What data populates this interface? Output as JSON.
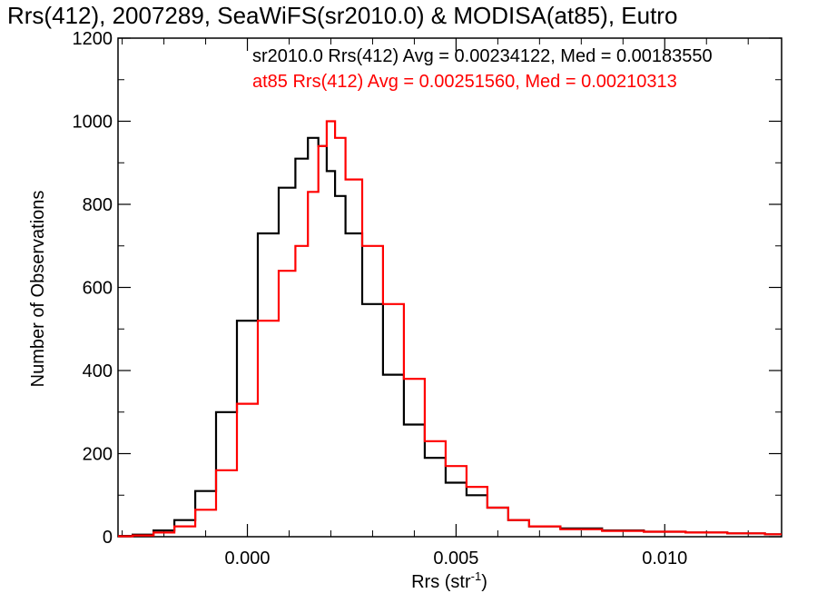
{
  "chart_data": {
    "type": "line",
    "title": "Rrs(412), 2007289, SeaWiFS(sr2010.0) & MODISA(at85), Eutro",
    "xlabel": "Rrs (str",
    "xlabel_sup": "-1",
    "xlabel_end": ")",
    "ylabel": "Number of Observations",
    "xlim": [
      -0.0031,
      0.0128
    ],
    "ylim": [
      0,
      1200
    ],
    "xticks": [
      0.0,
      0.005,
      0.01
    ],
    "xtick_labels": [
      "0.000",
      "0.005",
      "0.010"
    ],
    "yticks": [
      0,
      200,
      400,
      600,
      800,
      1000,
      1200
    ],
    "ytick_labels": [
      "0",
      "200",
      "400",
      "600",
      "800",
      "1000",
      "1200"
    ],
    "grid": false,
    "legend_position": "top-right",
    "x": [
      -0.003,
      -0.0025,
      -0.002,
      -0.0015,
      -0.001,
      -0.0005,
      0.0,
      0.0005,
      0.001,
      0.0013,
      0.0016,
      0.0018,
      0.002,
      0.0022,
      0.0025,
      0.003,
      0.0035,
      0.004,
      0.0045,
      0.005,
      0.0055,
      0.006,
      0.0065,
      0.007,
      0.008,
      0.009,
      0.01,
      0.011,
      0.012,
      0.0128
    ],
    "series": [
      {
        "name": "sr2010.0",
        "color": "#000000",
        "legend_text": "sr2010.0 Rrs(412) Avg = 0.00234122, Med = 0.00183550",
        "values": [
          2,
          5,
          15,
          40,
          110,
          300,
          520,
          730,
          840,
          910,
          960,
          940,
          880,
          820,
          730,
          560,
          390,
          270,
          190,
          130,
          100,
          70,
          40,
          25,
          20,
          15,
          12,
          10,
          8,
          6
        ]
      },
      {
        "name": "at85",
        "color": "#ff0000",
        "legend_text": "at85 Rrs(412) Avg = 0.00251560, Med = 0.00210313",
        "values": [
          1,
          3,
          10,
          25,
          65,
          160,
          320,
          520,
          640,
          700,
          830,
          940,
          1000,
          960,
          860,
          700,
          560,
          380,
          230,
          170,
          120,
          70,
          40,
          25,
          18,
          14,
          12,
          10,
          8,
          6
        ]
      }
    ]
  }
}
